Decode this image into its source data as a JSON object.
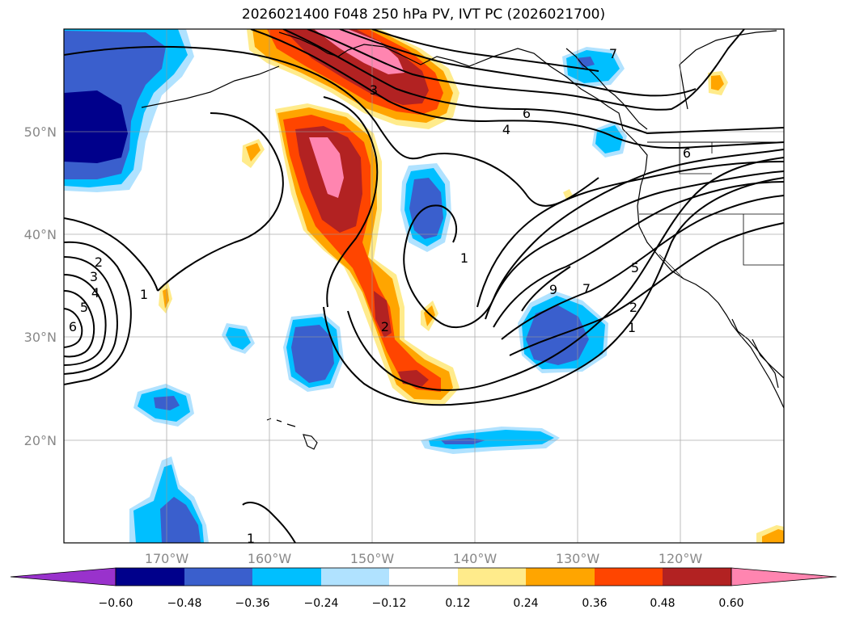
{
  "title": "2026021400 F048 250 hPa PV, IVT PC (2026021700)",
  "map": {
    "lon_ticks": [
      "170°W",
      "160°W",
      "150°W",
      "140°W",
      "130°W",
      "120°W"
    ],
    "lat_ticks": [
      "50°N",
      "40°N",
      "30°N",
      "20°N"
    ],
    "grid": true
  },
  "colorbar": {
    "colors": [
      "#9932cc",
      "#00008b",
      "#3a5fcd",
      "#00bfff",
      "#b0e2ff",
      "#ffffff",
      "#ffeb8b",
      "#ffa500",
      "#ff4500",
      "#b22222",
      "#ff85b0",
      "#ff85b0"
    ],
    "extend": "both",
    "tick_labels": [
      "−0.60",
      "−0.48",
      "−0.36",
      "−0.24",
      "−0.12",
      "0.12",
      "0.24",
      "0.36",
      "0.48",
      "0.60"
    ]
  },
  "contour_labels": [
    "2",
    "3",
    "4",
    "5",
    "6",
    "1",
    "3",
    "6",
    "4",
    "6",
    "1",
    "2",
    "9",
    "7",
    "5",
    "2",
    "1",
    "1",
    "7"
  ],
  "palette": {
    "pv_neg3": "#00008b",
    "pv_neg2": "#3a5fcd",
    "pv_neg1": "#00bfff",
    "pv_neg0": "#b0e2ff",
    "pv_pos0": "#ffeb8b",
    "pv_pos1": "#ffa500",
    "pv_pos2": "#ff4500",
    "pv_pos3": "#b22222",
    "pv_pos4": "#ff85b0"
  }
}
